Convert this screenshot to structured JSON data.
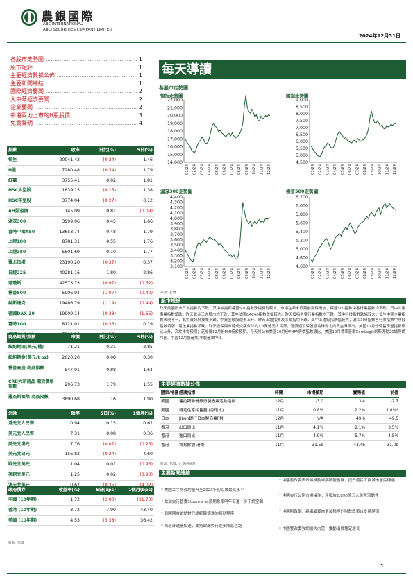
{
  "header": {
    "logo_cn": "農銀國際",
    "logo_en1": "ABC INTERNATIONAL",
    "logo_en2": "ABCI SECURITIES COMPANY LIMITED",
    "date": "2024年12月31日"
  },
  "toc": [
    {
      "label": "各股市走勢圖",
      "page": "1"
    },
    {
      "label": "股市短評",
      "page": "1"
    },
    {
      "label": "主要經濟數據公佈",
      "page": "1"
    },
    {
      "label": "主要新聞總結",
      "page": "1"
    },
    {
      "label": "國際經濟要聞",
      "page": "2"
    },
    {
      "label": "大中華經濟要聞",
      "page": "2"
    },
    {
      "label": "企業要聞",
      "page": "2"
    },
    {
      "label": "中港兩地上市的H股股價",
      "page": "3"
    },
    {
      "label": "免責聲明",
      "page": "4"
    }
  ],
  "index_table": {
    "headers": [
      "指數",
      "收市",
      "日比(%)",
      "5日(%)"
    ],
    "rows": [
      [
        "恒生",
        "20041.42",
        "(0.24)",
        "1.46"
      ],
      [
        "H股",
        "7280.48",
        "(0.34)",
        "1.79"
      ],
      [
        "紅籌",
        "3755.41",
        "0.02",
        "1.81"
      ],
      [
        "HSC大型股",
        "1839.13",
        "(0.15)",
        "1.38"
      ],
      [
        "HSC中型股",
        "3774.04",
        "(0.27)",
        "0.12"
      ],
      [
        "AH股溢價",
        "145.09",
        "0.81",
        "(0.09)"
      ],
      [
        "滬深300",
        "3999.06",
        "0.45",
        "1.66"
      ],
      [
        "富時中國A50",
        "13653.74",
        "0.48",
        "1.79"
      ],
      [
        "上證180",
        "8781.31",
        "0.55",
        "1.76"
      ],
      [
        "上證380",
        "5501.69",
        "0.10",
        "1.77"
      ],
      [
        "臺北加權",
        "23190.20",
        "(0.37)",
        "0.37"
      ],
      [
        "日經225",
        "40281.16",
        "1.80",
        "2.86"
      ],
      [
        "道瓊斯",
        "42573.73",
        "(0.97)",
        "(0.62)"
      ],
      [
        "標普500",
        "5906.94",
        "(1.07)",
        "(0.40)"
      ],
      [
        "納斯達克",
        "19486.79",
        "(1.19)",
        "(0.44)"
      ],
      [
        "德國DAX 30",
        "19909.14",
        "(0.38)",
        "(1.65)"
      ],
      [
        "富時100",
        "8121.01",
        "(0.35)",
        "0.19"
      ],
      [
        "法國CAC 40",
        "7313.56",
        "(0.57)",
        "0.26"
      ]
    ]
  },
  "commodity_table": {
    "headers": [
      "商品期貨/指數",
      "市價",
      "日比(%)",
      "5日(%)"
    ],
    "rows": [
      [
        "紐約期油(美元/桶)",
        "71.21",
        "0.31",
        "2.85"
      ],
      [
        "紐約期金(美元/t oz)",
        "2620.20",
        "0.08",
        "0.30"
      ],
      [
        "標普高盛 商品指數",
        "547.91",
        "0.88",
        "1.64"
      ],
      [
        "CRB大宗商品 期貨價格指數",
        "296.73",
        "1.79",
        "1.55"
      ],
      [
        "羅杰斯國際 商品指數",
        "3890.68",
        "1.16",
        "1.90"
      ]
    ]
  },
  "fx_table": {
    "headers": [
      "外匯",
      "匯率",
      "5日(%)",
      "1個月(%)"
    ],
    "rows": [
      [
        "港元兌人民幣",
        "0.94",
        "0.15",
        "0.62"
      ],
      [
        "美元兌人民幣",
        "7.31",
        "0.08",
        "0.36"
      ],
      [
        "美元兌港元",
        "7.76",
        "(0.07)",
        "(0.25)"
      ],
      [
        "美元兌日元",
        "156.82",
        "(0.24)",
        "4.60"
      ],
      [
        "歐元兌美元",
        "1.04",
        "0.01",
        "(0.93)"
      ],
      [
        "英鎊兌美元",
        "1.25",
        "0.02",
        "(0.90)"
      ],
      [
        "澳元兌美元",
        "0.62",
        "(0.35)",
        "(4.02)"
      ]
    ]
  },
  "bond_table": {
    "headers": [
      "政府債券",
      "收益率(%)",
      "5日(bps)",
      "1個月(bps)"
    ],
    "rows": [
      [
        "中國 (10年期)",
        "1.72",
        "(2.00)",
        "(31.70)"
      ],
      [
        "香港 (10年期)",
        "3.72",
        "7.90",
        "43.40"
      ],
      [
        "美國 (10年期)",
        "4.53",
        "(5.38)",
        "36.42"
      ]
    ]
  },
  "left_source": "來源：彭博",
  "main_title": "每天導讀",
  "charts_section": "各股市走勢圖",
  "charts": [
    {
      "title": "恒指走勢圖",
      "yticks": [
        "22,000",
        "21,000",
        "20,000",
        "19,000",
        "18,000",
        "17,000",
        "16,000",
        "15,000",
        "14,000"
      ],
      "ymin": 14000,
      "ymax": 22000,
      "values": [
        16900,
        16600,
        16300,
        16100,
        15600,
        15400,
        15200,
        15600,
        16200,
        16600,
        16800,
        17200,
        17000,
        16500,
        16400,
        16600,
        17200,
        18100,
        18800,
        19000,
        18600,
        18300,
        17900,
        18100,
        17800,
        17600,
        17400,
        17300,
        17600,
        17700,
        17400,
        17800,
        17400,
        17100,
        17300,
        17400,
        17700,
        18200,
        19000,
        21200,
        22600,
        21000,
        20500,
        20300,
        20800,
        20400,
        19800,
        20100,
        19400,
        19300,
        19900,
        19600,
        19700,
        20000,
        19800,
        20100,
        20000
      ]
    },
    {
      "title": "國指走勢圖",
      "yticks": [
        "9,000",
        "8,500",
        "8,000",
        "7,500",
        "7,000",
        "6,500",
        "6,000",
        "5,500",
        "5,000",
        "4,500"
      ],
      "ymin": 4500,
      "ymax": 9000,
      "values": [
        5700,
        5500,
        5300,
        5200,
        5000,
        4950,
        4900,
        5100,
        5400,
        5600,
        5700,
        5900,
        5800,
        5600,
        5500,
        5600,
        5900,
        6300,
        6600,
        6700,
        6500,
        6400,
        6200,
        6300,
        6100,
        6000,
        5950,
        5900,
        6050,
        6100,
        5950,
        6200,
        6100,
        6000,
        6100,
        6150,
        6300,
        6500,
        6900,
        7700,
        8200,
        7700,
        7400,
        7300,
        7500,
        7300,
        7100,
        7200,
        6950,
        6900,
        7150,
        7050,
        7100,
        7250,
        7150,
        7300,
        7280
      ]
    },
    {
      "title": "滬深300走勢圖",
      "yticks": [
        "4,400",
        "4,300",
        "4,200",
        "4,100",
        "4,000",
        "3,900",
        "3,800",
        "3,700",
        "3,600",
        "3,500",
        "3,400",
        "3,300",
        "3,200",
        "3,100"
      ],
      "ymin": 3100,
      "ymax": 4400,
      "values": [
        3400,
        3350,
        3300,
        3250,
        3200,
        3180,
        3300,
        3400,
        3500,
        3550,
        3500,
        3550,
        3600,
        3570,
        3550,
        3600,
        3650,
        3630,
        3600,
        3620,
        3580,
        3550,
        3500,
        3520,
        3500,
        3450,
        3400,
        3380,
        3350,
        3300,
        3320,
        3280,
        3320,
        3250,
        3230,
        3300,
        3500,
        3900,
        4300,
        4150,
        4000,
        3950,
        3900,
        3950,
        3850,
        3900,
        3950,
        3900,
        3950,
        3980,
        3930,
        3950,
        3920,
        4000,
        3980,
        4000,
        4010
      ]
    },
    {
      "title": "標普500走勢圖",
      "yticks": [
        "6,200",
        "6,000",
        "5,800",
        "5,600",
        "5,400",
        "5,200",
        "5,000",
        "4,800",
        "4,600"
      ],
      "ymin": 4600,
      "ymax": 6200,
      "values": [
        4750,
        4700,
        4800,
        4850,
        4900,
        5000,
        5050,
        5100,
        5150,
        5200,
        5250,
        5200,
        5100,
        5000,
        5050,
        5150,
        5250,
        5300,
        5320,
        5350,
        5300,
        5400,
        5450,
        5500,
        5450,
        5550,
        5600,
        5500,
        5450,
        5350,
        5400,
        5500,
        5550,
        5600,
        5620,
        5650,
        5700,
        5750,
        5700,
        5800,
        5850,
        5800,
        5750,
        5850,
        5900,
        5950,
        5800,
        5900,
        6000,
        6050,
        5950,
        6000,
        6050,
        6000,
        5950,
        5930,
        5907
      ]
    }
  ],
  "xlabels": [
    "01/24",
    "02/24",
    "03/24",
    "04/24",
    "05/24",
    "06/24",
    "07/24",
    "08/24",
    "09/24",
    "10/24",
    "11/24",
    "12/24"
  ],
  "chart_source": "來源：彭博",
  "commentary_title": "股市短評",
  "commentary": "昨天美國股市三大指數均下跌，其中納指和標普500指數跌幅相對較大，市場在年末假期前變得清淡；標普500指數中各行業指數均下跌，其中公用事業指數領跌。昨天歐洲三大股市均下跌，其中法國CAC40指數跌幅較大。昨天恒指主要行業指數均下跌，其中科技指數跌幅較大；恒生中國企業指數表現不一，其中資訊科技業下跌，中資金融股逆市上升。昨天上證指數及深成指均下跌，其中上證綜指跌幅較大；滬深300指數各行業指數中熱錢指數領漲、電信業指數領跌。昨天滬深兩市總成交額合計約1.3萬億元人民幣，滬股通及深股通均錄得北向資金淨流出。美國11月份待售房屋指數環比上升，高於市場預期；芝加哥12月份PMI低於預期。今天將公布美國10月份FHFA房價指數環比、美國10月標準普爾CoreLogic凱斯席勒20城房價月比、中國12月製造業/非製造業PMI。",
  "events_title": "主要經濟數據公佈",
  "events_headers": [
    "國家/地區",
    "經濟指標",
    "時間",
    "市場預期",
    "實際值",
    "前值"
  ],
  "events": [
    [
      "美國",
      "達拉斯聯儲銀行製造業活動指數",
      "12月",
      "-3.0",
      "3.4",
      "-2.7"
    ],
    [
      "美國",
      "待定住宅銷售量 (月環比)",
      "11月",
      "0.8%",
      "2.2%",
      "1.8%*"
    ],
    [
      "日本",
      "Jibun銀行日本製造業PMI",
      "12月",
      "N/A",
      "49.6",
      "49.5"
    ],
    [
      "香港",
      "出口同比",
      "11月",
      "4.1%",
      "2.1%",
      "3.5%"
    ],
    [
      "香港",
      "進口同比",
      "11月",
      "4.9%",
      "5.7%",
      "4.5%"
    ],
    [
      "香港",
      "貿易餘額 港幣",
      "11月",
      "-31.5b",
      "-43.4b",
      "-31.0b"
    ]
  ],
  "events_source": "來源：彭博，(*)為經修訂",
  "news_title": "主要新聞總結",
  "news_left": [
    "美國二手房簽約量升至2023年初以來最高水平",
    "歐洲央行管委Stournaras預期息率明年有進一步下調空間",
    "韓國國會啟動對代總統韓德洙的彈劾程序",
    "西班牙通脹加速，支持歐洲央行逐步降息之路"
  ],
  "news_right": [
    "中國發改委表示將推動城鄉統籌發展，提升農民工與城市居民待遇",
    "中國央行公開市場操作，淨投放2,890億元人民幣流動性",
    "中國財政部：將繼續實施更加積極的財政政策以支持經濟",
    "中國發改委強調擴大內需，推動消費穩定增長"
  ],
  "footer_page": "1"
}
